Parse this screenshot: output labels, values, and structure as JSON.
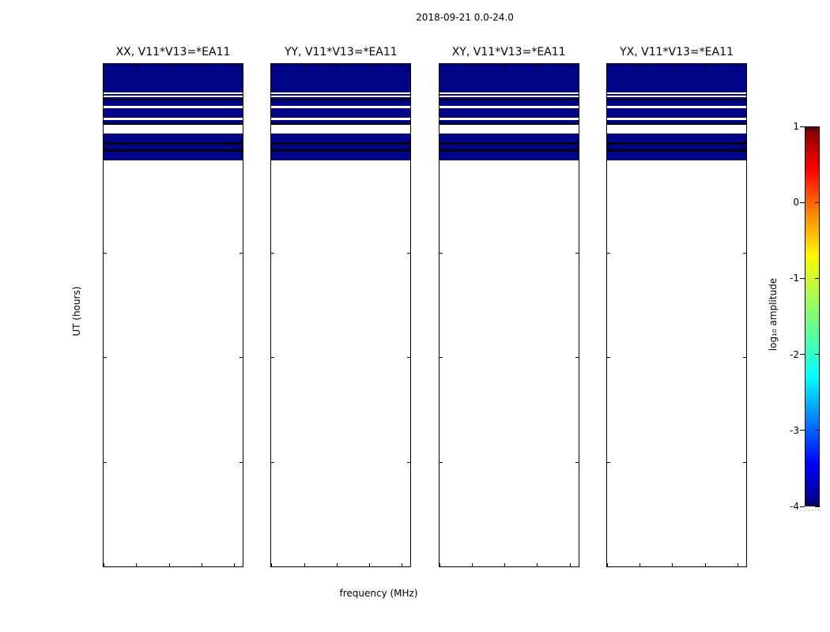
{
  "chart_data": {
    "type": "heatmap",
    "title": "2018-09-21 0.0-24.0",
    "xlabel": "frequency (MHz)",
    "ylabel": "UT (hours)",
    "x_range_mhz": [
      320,
      384
    ],
    "y_range_hours": [
      0,
      24
    ],
    "x_ticks": [
      320,
      335,
      350,
      365,
      380
    ],
    "y_ticks": [
      0,
      5,
      10,
      15,
      20
    ],
    "panels": [
      {
        "title": "XX, V11*V13=*EA11"
      },
      {
        "title": "YY, V11*V13=*EA11"
      },
      {
        "title": "XY, V11*V13=*EA11"
      },
      {
        "title": "YX, V11*V13=*EA11"
      }
    ],
    "time_segments": [
      {
        "from_ut": 24.0,
        "to_ut": 22.65,
        "state": "data"
      },
      {
        "from_ut": 22.65,
        "to_ut": 22.57,
        "state": "gap"
      },
      {
        "from_ut": 22.57,
        "to_ut": 22.5,
        "state": "data"
      },
      {
        "from_ut": 22.5,
        "to_ut": 22.42,
        "state": "gap"
      },
      {
        "from_ut": 22.42,
        "to_ut": 22.34,
        "state": "data"
      },
      {
        "from_ut": 22.34,
        "to_ut": 22.26,
        "state": "low"
      },
      {
        "from_ut": 22.26,
        "to_ut": 22.01,
        "state": "data"
      },
      {
        "from_ut": 22.01,
        "to_ut": 21.89,
        "state": "gap"
      },
      {
        "from_ut": 21.89,
        "to_ut": 21.44,
        "state": "data"
      },
      {
        "from_ut": 21.44,
        "to_ut": 21.33,
        "state": "gap"
      },
      {
        "from_ut": 21.33,
        "to_ut": 21.18,
        "state": "data"
      },
      {
        "from_ut": 21.18,
        "to_ut": 21.1,
        "state": "low"
      },
      {
        "from_ut": 21.1,
        "to_ut": 20.69,
        "state": "gap"
      },
      {
        "from_ut": 20.69,
        "to_ut": 20.28,
        "state": "data"
      },
      {
        "from_ut": 20.28,
        "to_ut": 20.16,
        "state": "low"
      },
      {
        "from_ut": 20.16,
        "to_ut": 19.94,
        "state": "data"
      },
      {
        "from_ut": 19.94,
        "to_ut": 19.82,
        "state": "low"
      },
      {
        "from_ut": 19.82,
        "to_ut": 19.41,
        "state": "data"
      },
      {
        "from_ut": 19.41,
        "to_ut": 0.0,
        "state": "empty"
      }
    ],
    "colors": {
      "data": "#000487",
      "low_row": "#000010",
      "empty": "#ffffff"
    },
    "colorbar": {
      "label": "log₁₀ amplitude",
      "ticks": [
        1,
        0,
        -1,
        -2,
        -3,
        -4
      ],
      "range": [
        -4,
        1
      ],
      "colormap": "jet",
      "gradient": [
        {
          "color": "#7f0000",
          "pct": 0
        },
        {
          "color": "#ff0000",
          "pct": 11
        },
        {
          "color": "#ff9400",
          "pct": 24
        },
        {
          "color": "#fff700",
          "pct": 34
        },
        {
          "color": "#7dff75",
          "pct": 50
        },
        {
          "color": "#00ffff",
          "pct": 66
        },
        {
          "color": "#0000ff",
          "pct": 89
        },
        {
          "color": "#000080",
          "pct": 100
        }
      ]
    }
  }
}
